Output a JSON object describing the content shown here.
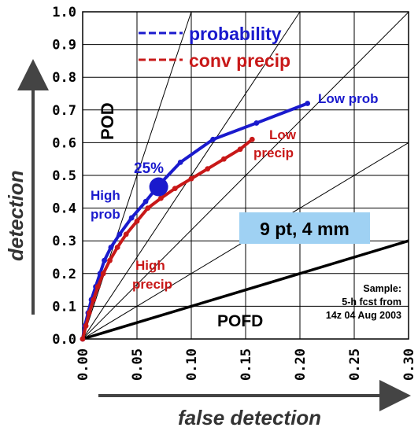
{
  "chart_data": {
    "type": "line",
    "xlabel": "false detection",
    "ylabel": "detection",
    "xlim": [
      0,
      0.3
    ],
    "ylim": [
      0,
      1.0
    ],
    "x_ticks": [
      "0.00",
      "0.05",
      "0.10",
      "0.15",
      "0.20",
      "0.25",
      "0.30"
    ],
    "y_ticks": [
      "0.0",
      "0.1",
      "0.2",
      "0.3",
      "0.4",
      "0.5",
      "0.6",
      "0.7",
      "0.8",
      "0.9",
      "1.0"
    ],
    "grid": true,
    "legend_position": "top",
    "series": [
      {
        "name": "probability",
        "color": "#1a1acd",
        "x": [
          0.0,
          0.002,
          0.005,
          0.008,
          0.012,
          0.016,
          0.02,
          0.026,
          0.034,
          0.045,
          0.058,
          0.07,
          0.09,
          0.12,
          0.16,
          0.207
        ],
        "y": [
          0.0,
          0.04,
          0.08,
          0.12,
          0.16,
          0.2,
          0.24,
          0.28,
          0.32,
          0.37,
          0.42,
          0.47,
          0.54,
          0.61,
          0.66,
          0.72
        ]
      },
      {
        "name": "conv precip",
        "color": "#c81818",
        "x": [
          0.0,
          0.003,
          0.006,
          0.01,
          0.014,
          0.019,
          0.025,
          0.032,
          0.04,
          0.05,
          0.06,
          0.072,
          0.085,
          0.1,
          0.115,
          0.13,
          0.145,
          0.156
        ],
        "y": [
          0.0,
          0.04,
          0.08,
          0.12,
          0.16,
          0.2,
          0.24,
          0.28,
          0.32,
          0.36,
          0.4,
          0.43,
          0.46,
          0.49,
          0.52,
          0.55,
          0.58,
          0.61
        ]
      }
    ],
    "highlight_point": {
      "series": "probability",
      "x": 0.07,
      "y": 0.465,
      "label": "25%"
    },
    "reference_lines_slope": [
      10,
      5,
      3.33,
      2,
      1
    ],
    "annotations": {
      "pod": "POD",
      "pofd": "POFD",
      "low_prob": "Low prob",
      "low_precip_1": "Low",
      "low_precip_2": "precip",
      "high_prob_1": "High",
      "high_prob_2": "prob",
      "high_precip_1": "High",
      "high_precip_2": "precip",
      "pct_label": "25%",
      "box_label": "9 pt, 4 mm",
      "sample_1": "Sample:",
      "sample_2": "5-h fcst from",
      "sample_3": "14z 04 Aug 2003"
    }
  }
}
